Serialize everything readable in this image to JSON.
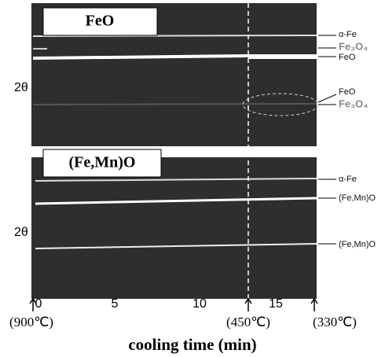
{
  "panels": [
    {
      "title": "FeO",
      "axis_label": "2θ",
      "peaks": [
        "α-Fe",
        "Fe₃O₄",
        "FeO",
        "FeO",
        "Fe₃O₄"
      ]
    },
    {
      "title": "(Fe,Mn)O",
      "axis_label": "2θ",
      "peaks": [
        "α-Fe",
        "(Fe,Mn)O",
        "(Fe,Mn)O"
      ]
    }
  ],
  "x_axis": {
    "ticks": [
      "0",
      "5",
      "10",
      "15"
    ],
    "temperatures": [
      "(900℃)",
      "(450℃)",
      "(330℃)"
    ],
    "label": "cooling time (min)"
  }
}
